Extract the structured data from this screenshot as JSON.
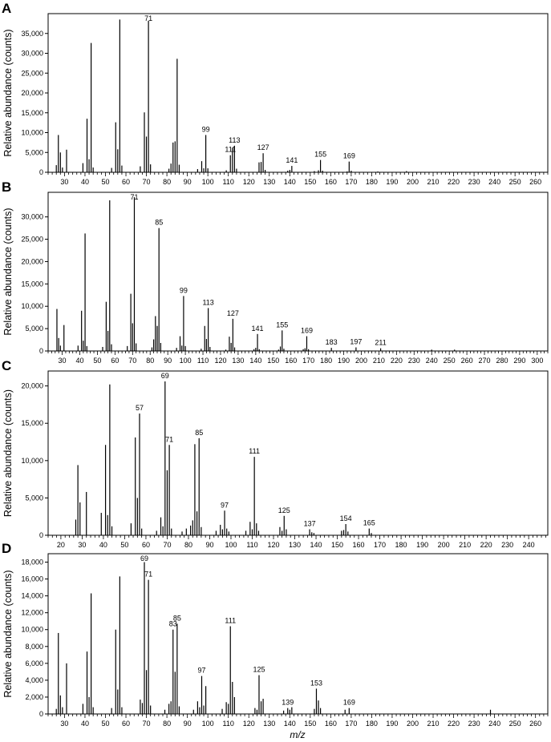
{
  "figure": {
    "x_axis_title": "m/z"
  },
  "chart_data": [
    {
      "panel": "A",
      "type": "bar",
      "ylabel": "Relative abundance (counts)",
      "xlabel": "",
      "xlim": [
        22,
        266
      ],
      "ylim": [
        0,
        40000
      ],
      "x_ticks": [
        30,
        40,
        50,
        60,
        70,
        80,
        90,
        100,
        110,
        120,
        130,
        140,
        150,
        160,
        170,
        180,
        190,
        200,
        210,
        220,
        230,
        240,
        250,
        260
      ],
      "y_ticks": [
        0,
        5000,
        10000,
        15000,
        20000,
        25000,
        30000,
        35000
      ],
      "y_tick_labels": [
        "0",
        "5,000",
        "10,000",
        "15,000",
        "20,000",
        "25,000",
        "30,000",
        "35,000"
      ],
      "peaks": [
        [
          26,
          1800
        ],
        [
          27,
          9400
        ],
        [
          28,
          5000
        ],
        [
          29,
          1200
        ],
        [
          31,
          5700
        ],
        [
          39,
          2300
        ],
        [
          41,
          13500
        ],
        [
          42,
          3300
        ],
        [
          43,
          32600
        ],
        [
          44,
          1200
        ],
        [
          53,
          1100
        ],
        [
          55,
          12600
        ],
        [
          56,
          5800
        ],
        [
          57,
          38500
        ],
        [
          58,
          1700
        ],
        [
          67,
          1500
        ],
        [
          69,
          15100
        ],
        [
          70,
          9000
        ],
        [
          71,
          38200
        ],
        [
          72,
          2000
        ],
        [
          81,
          900
        ],
        [
          82,
          2200
        ],
        [
          83,
          7500
        ],
        [
          84,
          7800
        ],
        [
          85,
          28600
        ],
        [
          86,
          1900
        ],
        [
          95,
          800
        ],
        [
          97,
          2800
        ],
        [
          98,
          1000
        ],
        [
          99,
          9400
        ],
        [
          100,
          1000
        ],
        [
          109,
          500
        ],
        [
          111,
          4300
        ],
        [
          112,
          6200
        ],
        [
          113,
          6700
        ],
        [
          114,
          900
        ],
        [
          125,
          2500
        ],
        [
          126,
          2600
        ],
        [
          127,
          4800
        ],
        [
          128,
          600
        ],
        [
          139,
          400
        ],
        [
          140,
          600
        ],
        [
          141,
          1600
        ],
        [
          152,
          300
        ],
        [
          154,
          500
        ],
        [
          155,
          3100
        ],
        [
          156,
          400
        ],
        [
          168,
          200
        ],
        [
          169,
          2700
        ],
        [
          170,
          400
        ],
        [
          183,
          200
        ],
        [
          197,
          300
        ]
      ],
      "labels": [
        {
          "x": 71,
          "text": "71"
        },
        {
          "x": 99,
          "text": "99"
        },
        {
          "x": 111,
          "text": "111"
        },
        {
          "x": 113,
          "text": "113"
        },
        {
          "x": 127,
          "text": "127"
        },
        {
          "x": 141,
          "text": "141"
        },
        {
          "x": 155,
          "text": "155"
        },
        {
          "x": 169,
          "text": "169"
        }
      ]
    },
    {
      "panel": "B",
      "type": "bar",
      "ylabel": "Relative abundance (counts)",
      "xlabel": "",
      "xlim": [
        22,
        306
      ],
      "ylim": [
        0,
        35500
      ],
      "x_ticks": [
        30,
        40,
        50,
        60,
        70,
        80,
        90,
        100,
        110,
        120,
        130,
        140,
        150,
        160,
        170,
        180,
        190,
        200,
        210,
        220,
        230,
        240,
        250,
        260,
        270,
        280,
        290,
        300
      ],
      "y_ticks": [
        0,
        5000,
        10000,
        15000,
        20000,
        25000,
        30000
      ],
      "y_tick_labels": [
        "0",
        "5,000",
        "10,000",
        "15,000",
        "20,000",
        "25,000",
        "30,000"
      ],
      "peaks": [
        [
          27,
          9400
        ],
        [
          28,
          2900
        ],
        [
          29,
          1200
        ],
        [
          31,
          5800
        ],
        [
          39,
          1200
        ],
        [
          41,
          9000
        ],
        [
          42,
          2300
        ],
        [
          43,
          26300
        ],
        [
          44,
          1100
        ],
        [
          53,
          900
        ],
        [
          55,
          11000
        ],
        [
          56,
          4500
        ],
        [
          57,
          33700
        ],
        [
          58,
          1500
        ],
        [
          67,
          1100
        ],
        [
          69,
          12800
        ],
        [
          70,
          6200
        ],
        [
          71,
          34400
        ],
        [
          72,
          1700
        ],
        [
          81,
          800
        ],
        [
          82,
          2600
        ],
        [
          83,
          7800
        ],
        [
          84,
          5600
        ],
        [
          85,
          27500
        ],
        [
          86,
          1800
        ],
        [
          95,
          700
        ],
        [
          97,
          3300
        ],
        [
          98,
          1200
        ],
        [
          99,
          12300
        ],
        [
          100,
          1100
        ],
        [
          109,
          500
        ],
        [
          111,
          5600
        ],
        [
          112,
          2700
        ],
        [
          113,
          9600
        ],
        [
          114,
          900
        ],
        [
          123,
          300
        ],
        [
          125,
          3200
        ],
        [
          126,
          1800
        ],
        [
          127,
          7200
        ],
        [
          128,
          800
        ],
        [
          139,
          400
        ],
        [
          140,
          700
        ],
        [
          141,
          3800
        ],
        [
          142,
          400
        ],
        [
          153,
          300
        ],
        [
          154,
          1000
        ],
        [
          155,
          4600
        ],
        [
          156,
          500
        ],
        [
          167,
          400
        ],
        [
          168,
          600
        ],
        [
          169,
          3300
        ],
        [
          170,
          400
        ],
        [
          183,
          700
        ],
        [
          197,
          800
        ],
        [
          211,
          600
        ],
        [
          240,
          300
        ],
        [
          253,
          300
        ]
      ],
      "labels": [
        {
          "x": 71,
          "text": "71"
        },
        {
          "x": 85,
          "text": "85"
        },
        {
          "x": 99,
          "text": "99"
        },
        {
          "x": 113,
          "text": "113"
        },
        {
          "x": 127,
          "text": "127"
        },
        {
          "x": 141,
          "text": "141"
        },
        {
          "x": 155,
          "text": "155"
        },
        {
          "x": 169,
          "text": "169"
        },
        {
          "x": 183,
          "text": "183"
        },
        {
          "x": 197,
          "text": "197"
        },
        {
          "x": 211,
          "text": "211"
        }
      ]
    },
    {
      "panel": "C",
      "type": "bar",
      "ylabel": "Relative abundance (counts)",
      "xlabel": "",
      "xlim": [
        14,
        249
      ],
      "ylim": [
        0,
        22000
      ],
      "x_ticks": [
        20,
        30,
        40,
        50,
        60,
        70,
        80,
        90,
        100,
        110,
        120,
        130,
        140,
        150,
        160,
        170,
        180,
        190,
        200,
        210,
        220,
        230,
        240
      ],
      "y_ticks": [
        0,
        5000,
        10000,
        15000,
        20000
      ],
      "y_tick_labels": [
        "0",
        "5,000",
        "10,000",
        "15,000",
        "20,000"
      ],
      "peaks": [
        [
          27,
          2100
        ],
        [
          28,
          9400
        ],
        [
          29,
          4400
        ],
        [
          32,
          5800
        ],
        [
          39,
          3000
        ],
        [
          41,
          12100
        ],
        [
          42,
          2700
        ],
        [
          43,
          20200
        ],
        [
          44,
          1200
        ],
        [
          53,
          1600
        ],
        [
          55,
          13100
        ],
        [
          56,
          5000
        ],
        [
          57,
          16300
        ],
        [
          58,
          900
        ],
        [
          65,
          600
        ],
        [
          67,
          2400
        ],
        [
          68,
          1200
        ],
        [
          69,
          20600
        ],
        [
          70,
          8700
        ],
        [
          71,
          12100
        ],
        [
          72,
          900
        ],
        [
          77,
          500
        ],
        [
          79,
          900
        ],
        [
          81,
          1300
        ],
        [
          82,
          2000
        ],
        [
          83,
          12200
        ],
        [
          84,
          3200
        ],
        [
          85,
          13000
        ],
        [
          86,
          1100
        ],
        [
          93,
          600
        ],
        [
          95,
          1400
        ],
        [
          96,
          800
        ],
        [
          97,
          3300
        ],
        [
          98,
          900
        ],
        [
          99,
          500
        ],
        [
          107,
          600
        ],
        [
          109,
          1800
        ],
        [
          110,
          800
        ],
        [
          111,
          10500
        ],
        [
          112,
          1600
        ],
        [
          113,
          600
        ],
        [
          123,
          1100
        ],
        [
          124,
          600
        ],
        [
          125,
          2600
        ],
        [
          126,
          800
        ],
        [
          137,
          800
        ],
        [
          138,
          400
        ],
        [
          139,
          300
        ],
        [
          152,
          600
        ],
        [
          153,
          700
        ],
        [
          154,
          1500
        ],
        [
          155,
          500
        ],
        [
          165,
          900
        ],
        [
          166,
          300
        ]
      ],
      "labels": [
        {
          "x": 57,
          "text": "57"
        },
        {
          "x": 69,
          "text": "69"
        },
        {
          "x": 71,
          "text": "71"
        },
        {
          "x": 85,
          "text": "85"
        },
        {
          "x": 97,
          "text": "97"
        },
        {
          "x": 111,
          "text": "111"
        },
        {
          "x": 125,
          "text": "125"
        },
        {
          "x": 137,
          "text": "137"
        },
        {
          "x": 154,
          "text": "154"
        },
        {
          "x": 165,
          "text": "165"
        }
      ]
    },
    {
      "panel": "D",
      "type": "bar",
      "ylabel": "Relative abundance (counts)",
      "xlabel": "m/z",
      "xlim": [
        22,
        266
      ],
      "ylim": [
        0,
        19000
      ],
      "x_ticks": [
        30,
        40,
        50,
        60,
        70,
        80,
        90,
        100,
        110,
        120,
        130,
        140,
        150,
        160,
        170,
        180,
        190,
        200,
        210,
        220,
        230,
        240,
        250,
        260
      ],
      "y_ticks": [
        0,
        2000,
        4000,
        6000,
        8000,
        10000,
        12000,
        14000,
        16000,
        18000
      ],
      "y_tick_labels": [
        "0",
        "2,000",
        "4,000",
        "6,000",
        "8,000",
        "10,000",
        "12,000",
        "14,000",
        "16,000",
        "18,000"
      ],
      "peaks": [
        [
          26,
          600
        ],
        [
          27,
          9600
        ],
        [
          28,
          2200
        ],
        [
          29,
          800
        ],
        [
          31,
          6000
        ],
        [
          39,
          1200
        ],
        [
          41,
          7400
        ],
        [
          42,
          2000
        ],
        [
          43,
          14300
        ],
        [
          44,
          800
        ],
        [
          53,
          700
        ],
        [
          55,
          10000
        ],
        [
          56,
          2900
        ],
        [
          57,
          16300
        ],
        [
          58,
          800
        ],
        [
          67,
          1700
        ],
        [
          68,
          1300
        ],
        [
          69,
          18000
        ],
        [
          70,
          5200
        ],
        [
          71,
          15900
        ],
        [
          72,
          1000
        ],
        [
          79,
          500
        ],
        [
          81,
          1200
        ],
        [
          82,
          1500
        ],
        [
          83,
          10000
        ],
        [
          84,
          5000
        ],
        [
          85,
          10700
        ],
        [
          86,
          900
        ],
        [
          93,
          500
        ],
        [
          95,
          1500
        ],
        [
          96,
          800
        ],
        [
          97,
          4500
        ],
        [
          98,
          1000
        ],
        [
          99,
          3300
        ],
        [
          107,
          600
        ],
        [
          109,
          1400
        ],
        [
          110,
          1200
        ],
        [
          111,
          10400
        ],
        [
          112,
          3800
        ],
        [
          113,
          2000
        ],
        [
          123,
          700
        ],
        [
          124,
          500
        ],
        [
          125,
          4600
        ],
        [
          126,
          1500
        ],
        [
          127,
          1800
        ],
        [
          137,
          400
        ],
        [
          139,
          700
        ],
        [
          140,
          500
        ],
        [
          141,
          800
        ],
        [
          152,
          600
        ],
        [
          153,
          3000
        ],
        [
          154,
          1600
        ],
        [
          155,
          700
        ],
        [
          167,
          500
        ],
        [
          169,
          700
        ],
        [
          238,
          500
        ]
      ],
      "labels": [
        {
          "x": 69,
          "text": "69"
        },
        {
          "x": 71,
          "text": "71"
        },
        {
          "x": 83,
          "text": "83"
        },
        {
          "x": 85,
          "text": "85"
        },
        {
          "x": 97,
          "text": "97"
        },
        {
          "x": 111,
          "text": "111"
        },
        {
          "x": 125,
          "text": "125"
        },
        {
          "x": 139,
          "text": "139"
        },
        {
          "x": 153,
          "text": "153"
        },
        {
          "x": 169,
          "text": "169"
        }
      ]
    }
  ]
}
